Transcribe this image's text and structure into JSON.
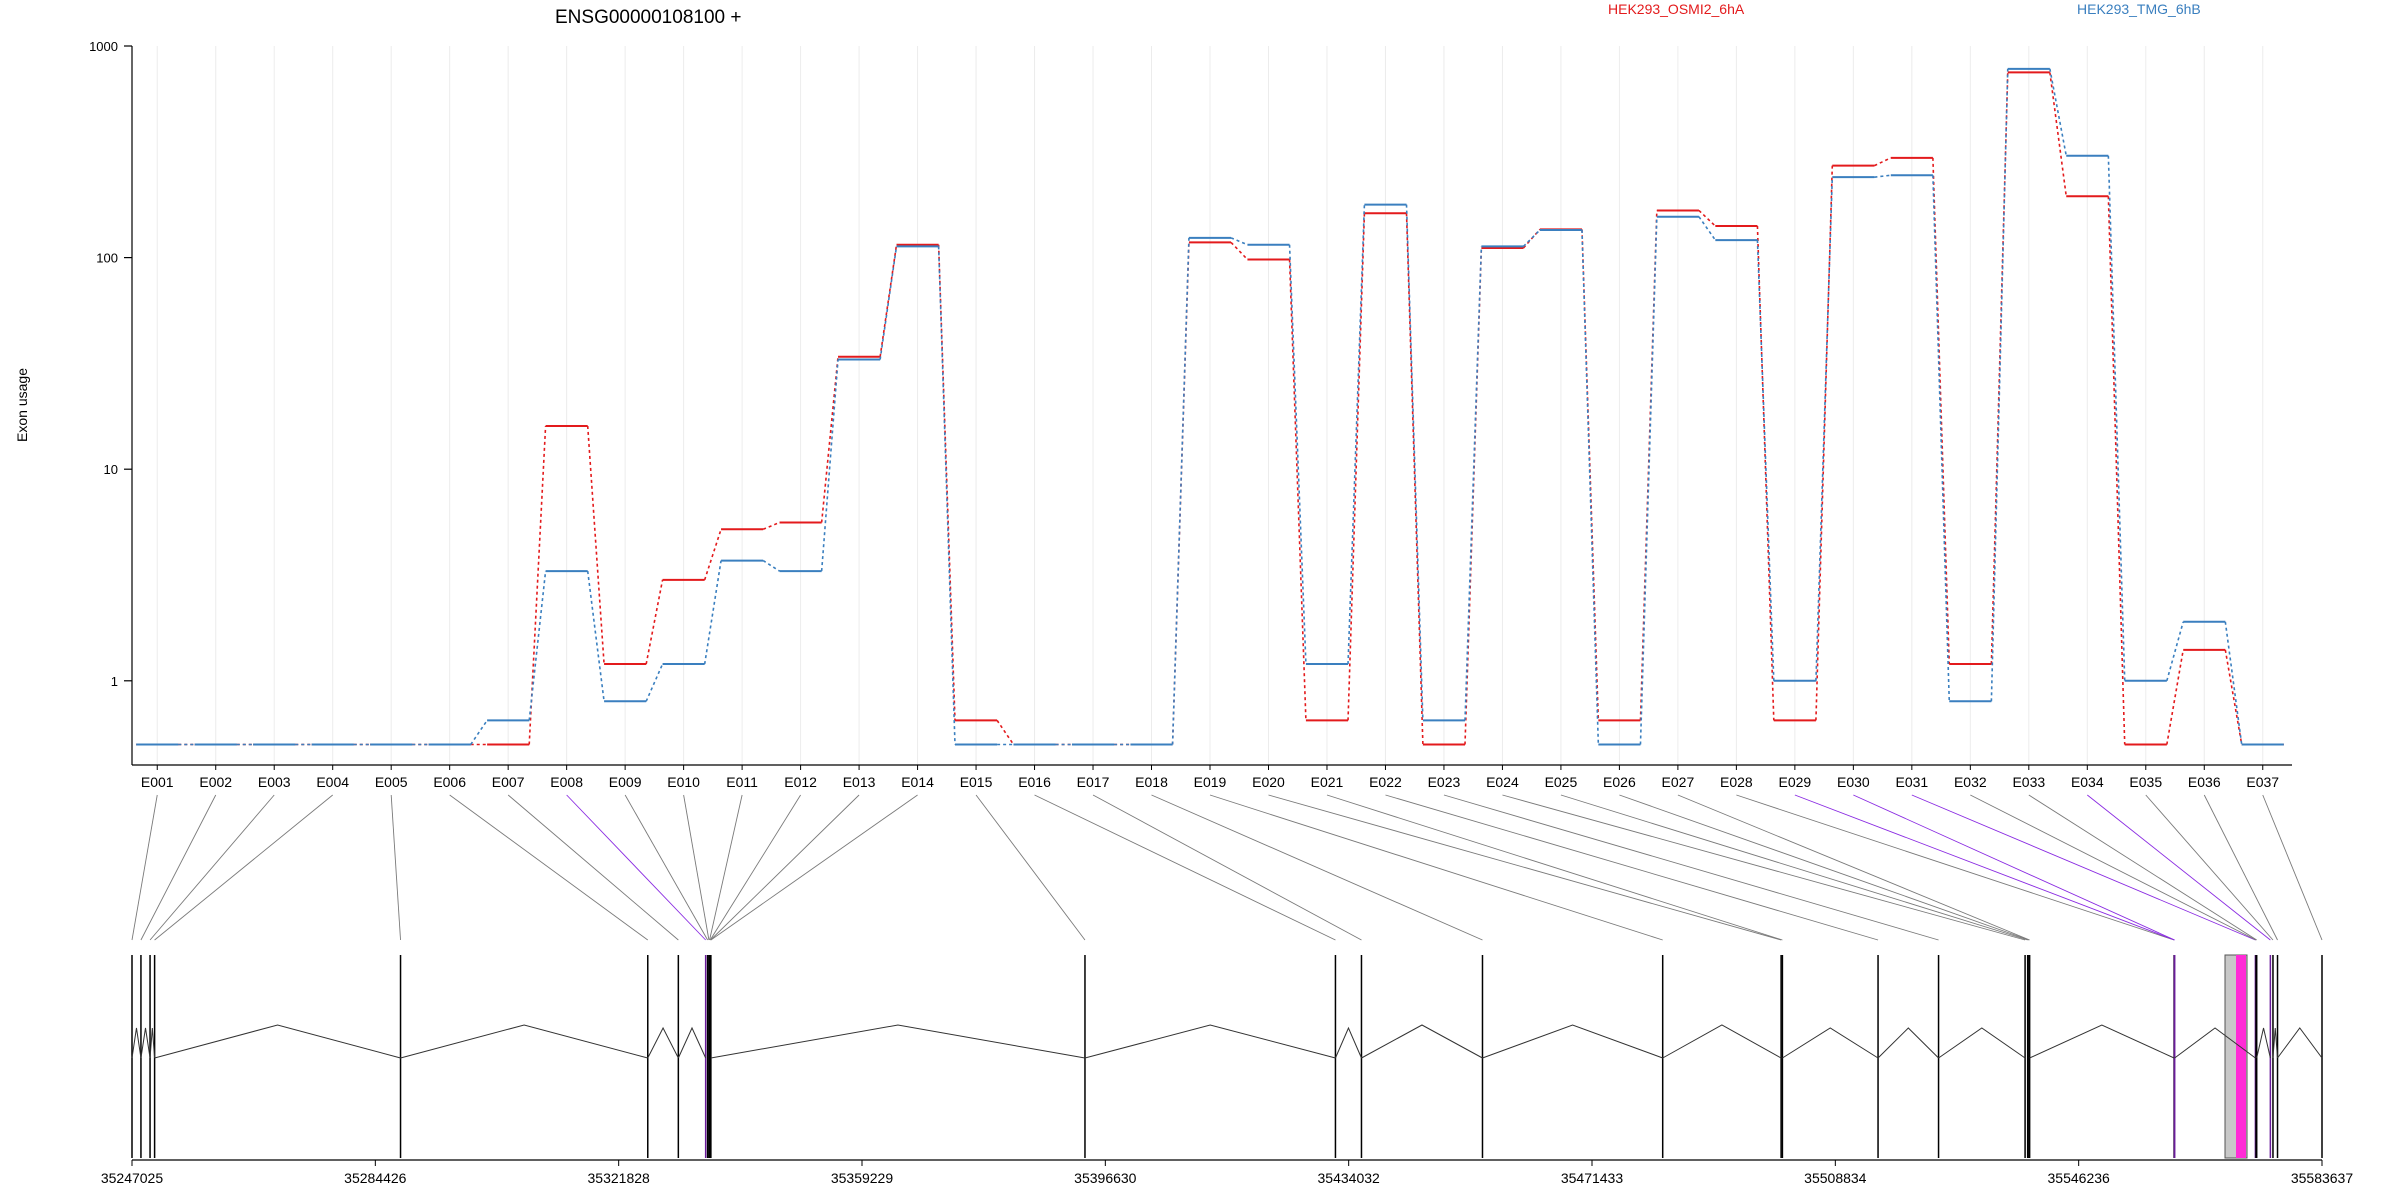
{
  "chart_data": {
    "type": "line",
    "title": "ENSG00000108100 +",
    "ylabel": "Exon usage",
    "yscale": "log",
    "ylim": [
      0.4,
      1000
    ],
    "ytick_labels": [
      "1",
      "10",
      "100",
      "1000"
    ],
    "ytick_values": [
      1,
      10,
      100,
      1000
    ],
    "grid": "vertical",
    "legend_placement": "top",
    "categories": [
      "E001",
      "E002",
      "E003",
      "E004",
      "E005",
      "E006",
      "E007",
      "E008",
      "E009",
      "E010",
      "E011",
      "E012",
      "E013",
      "E014",
      "E015",
      "E016",
      "E017",
      "E018",
      "E019",
      "E020",
      "E021",
      "E022",
      "E023",
      "E024",
      "E025",
      "E026",
      "E027",
      "E028",
      "E029",
      "E030",
      "E031",
      "E032",
      "E033",
      "E034",
      "E035",
      "E036",
      "E037"
    ],
    "series": [
      {
        "name": "HEK293_OSMI2_6hA",
        "color": "#e31a1c",
        "values": [
          0.5,
          0.5,
          0.5,
          0.5,
          0.5,
          0.5,
          0.5,
          16,
          1.2,
          3,
          5.2,
          5.6,
          34,
          115,
          0.65,
          0.5,
          0.5,
          0.5,
          118,
          98,
          0.65,
          162,
          0.5,
          111,
          136,
          0.65,
          167,
          141,
          0.65,
          272,
          296,
          1.2,
          750,
          195,
          0.5,
          1.4,
          0.5
        ]
      },
      {
        "name": "HEK293_TMG_6hB",
        "color": "#3a7fbf",
        "values": [
          0.5,
          0.5,
          0.5,
          0.5,
          0.5,
          0.5,
          0.65,
          3.3,
          0.8,
          1.2,
          3.7,
          3.3,
          33,
          113,
          0.5,
          0.5,
          0.5,
          0.5,
          124,
          115,
          1.2,
          178,
          0.65,
          113,
          135,
          0.5,
          156,
          121,
          1.0,
          240,
          245,
          0.8,
          780,
          303,
          1.0,
          1.9,
          0.5
        ]
      }
    ],
    "genomic_axis": {
      "tick_labels": [
        "35247025",
        "35284426",
        "35321828",
        "35359229",
        "35396630",
        "35434032",
        "35471433",
        "35508834",
        "35546236",
        "35583637"
      ],
      "start": 35247025,
      "end": 35583637
    },
    "exon_starts": [
      35247025,
      35248400,
      35249800,
      35250500,
      35288300,
      35326300,
      35331000,
      35335200,
      35335500,
      35335700,
      35335800,
      35335900,
      35335950,
      35336000,
      35393500,
      35432000,
      35436000,
      35454600,
      35482300,
      35500500,
      35500700,
      35515400,
      35524700,
      35538000,
      35538400,
      35538600,
      35538700,
      35560900,
      35560950,
      35560990,
      35573400,
      35573500,
      35573600,
      35575700,
      35576100,
      35576800,
      35583637
    ],
    "exon_highlight": [
      "none",
      "none",
      "none",
      "none",
      "none",
      "none",
      "none",
      "purple",
      "none",
      "none",
      "none",
      "none",
      "none",
      "none",
      "none",
      "none",
      "none",
      "none",
      "none",
      "none",
      "none",
      "none",
      "none",
      "none",
      "none",
      "none",
      "none",
      "none",
      "purple",
      "purple",
      "purple",
      "none",
      "none",
      "purple",
      "none",
      "none",
      "none"
    ]
  }
}
